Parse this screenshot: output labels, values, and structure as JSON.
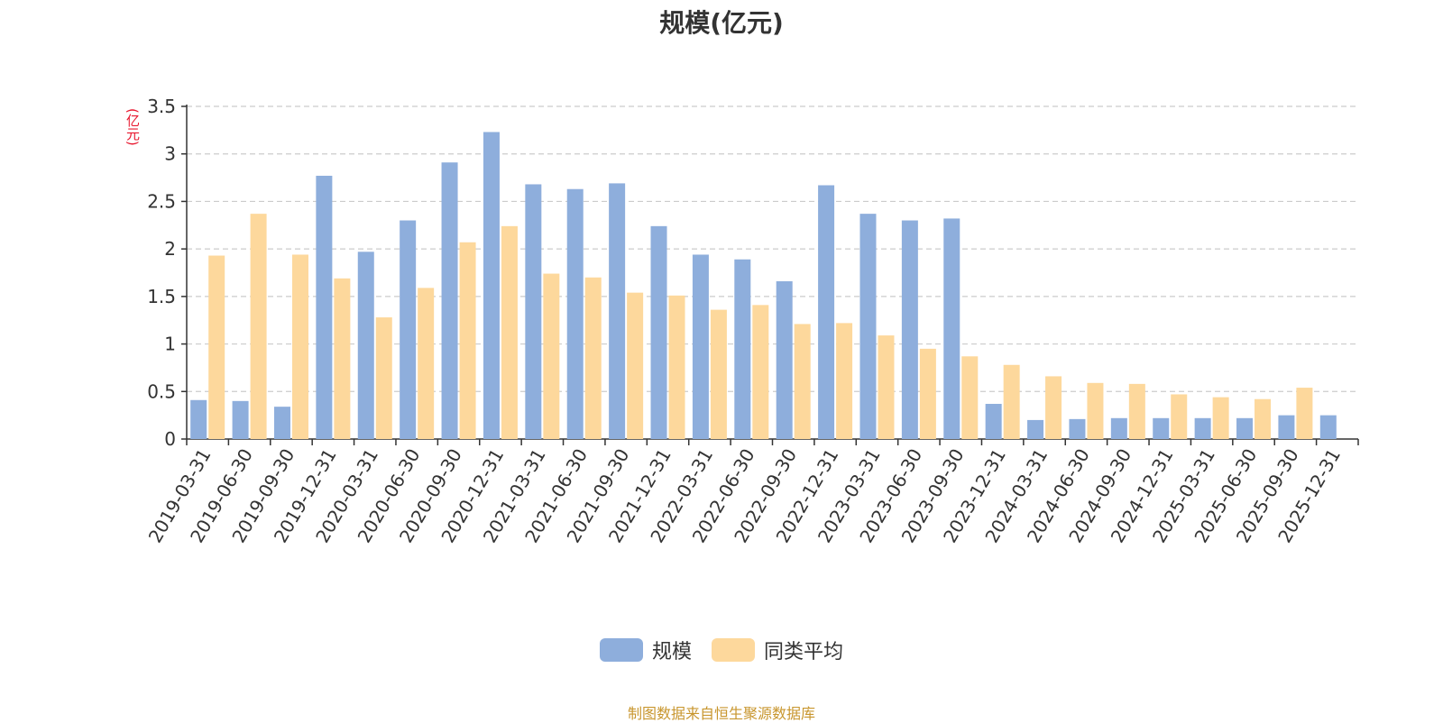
{
  "chart_data": {
    "type": "bar",
    "title": "规模(亿元)",
    "ylabel": "(亿元)",
    "ylim": [
      0,
      3.5
    ],
    "yticks": [
      0,
      0.5,
      1,
      1.5,
      2,
      2.5,
      3,
      3.5
    ],
    "ytick_labels": [
      "0",
      "0.5",
      "1",
      "1.5",
      "2",
      "2.5",
      "3",
      "3.5"
    ],
    "grid": true,
    "legend_position": "bottom-center",
    "categories": [
      "2019-03-31",
      "2019-06-30",
      "2019-09-30",
      "2019-12-31",
      "2020-03-31",
      "2020-06-30",
      "2020-09-30",
      "2020-12-31",
      "2021-03-31",
      "2021-06-30",
      "2021-09-30",
      "2021-12-31",
      "2022-03-31",
      "2022-06-30",
      "2022-09-30",
      "2022-12-31",
      "2023-03-31",
      "2023-06-30",
      "2023-09-30",
      "2023-12-31",
      "2024-03-31",
      "2024-06-30",
      "2024-09-30",
      "2024-12-31",
      "2025-03-31",
      "2025-06-30",
      "2025-09-30",
      "2025-12-31"
    ],
    "series": [
      {
        "name": "规模",
        "color": "#8eaedc",
        "values": [
          0.41,
          0.4,
          0.34,
          2.77,
          1.97,
          2.3,
          2.91,
          3.23,
          2.68,
          2.63,
          2.69,
          2.24,
          1.94,
          1.89,
          1.66,
          2.67,
          2.37,
          2.3,
          2.32,
          0.37,
          0.2,
          0.21,
          0.22,
          0.22,
          0.22,
          0.22,
          0.25,
          0.25
        ]
      },
      {
        "name": "同类平均",
        "color": "#fdd89c",
        "values": [
          1.93,
          2.37,
          1.94,
          1.69,
          1.28,
          1.59,
          2.07,
          2.24,
          1.74,
          1.7,
          1.54,
          1.51,
          1.36,
          1.41,
          1.21,
          1.22,
          1.09,
          0.95,
          0.87,
          0.78,
          0.66,
          0.59,
          0.58,
          0.47,
          0.44,
          0.42,
          0.54,
          null
        ]
      }
    ]
  },
  "colors": {
    "ylabel": "#e8182f",
    "source": "#c8962e",
    "axis": "#333333",
    "grid": "#cccccc"
  },
  "source_text": "制图数据来自恒生聚源数据库"
}
